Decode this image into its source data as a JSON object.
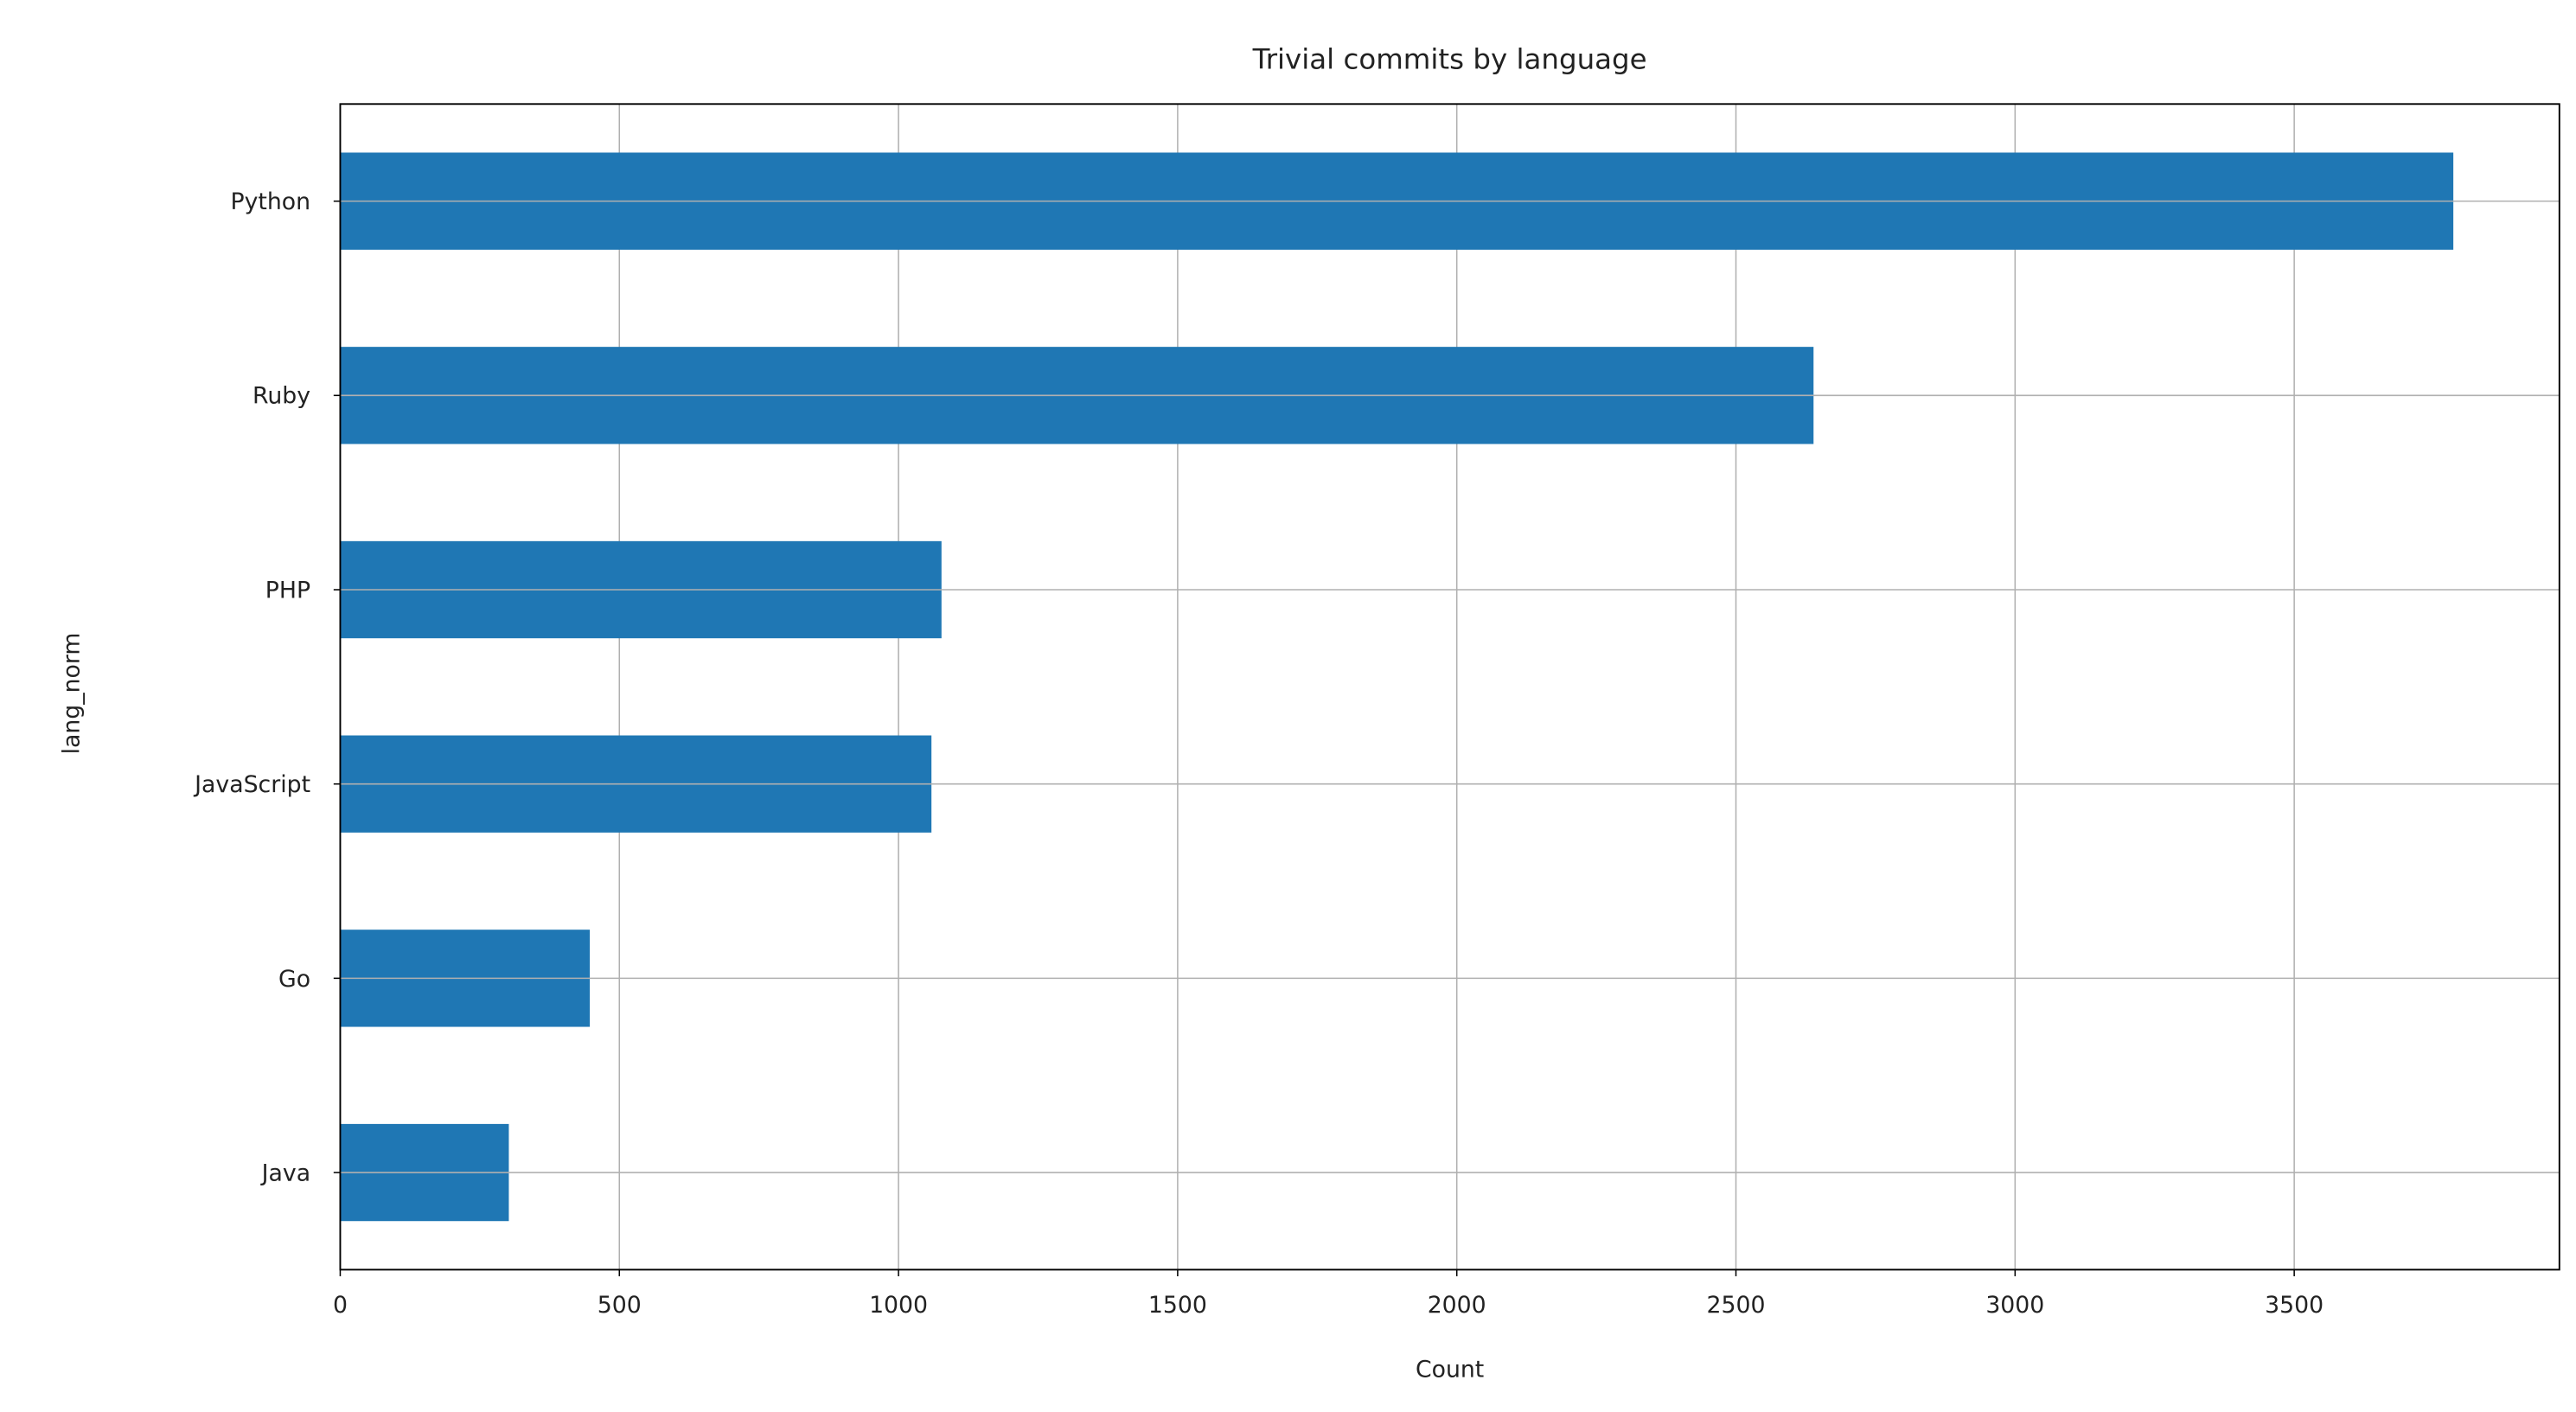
{
  "chart_data": {
    "type": "barh",
    "title": "Trivial commits by language",
    "x_label": "Count",
    "y_label": "lang_norm",
    "categories": [
      "Python",
      "Ruby",
      "PHP",
      "JavaScript",
      "Go",
      "Java"
    ],
    "values": [
      3785,
      2639,
      1077,
      1059,
      447,
      302
    ],
    "color": "#1f77b4",
    "xlim": [
      0,
      3975
    ],
    "xticks": [
      0,
      500,
      1000,
      1500,
      2000,
      2500,
      3000,
      3500
    ],
    "grid": true
  }
}
